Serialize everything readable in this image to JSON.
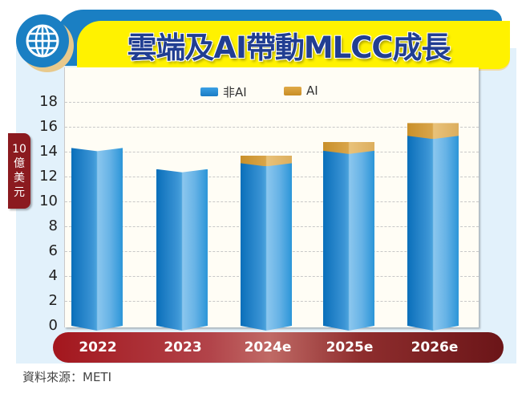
{
  "header": {
    "title": "雲端及AI帶動MLCC成長",
    "icon": "globe-icon"
  },
  "y_unit_label": [
    "10",
    "億",
    "美",
    "元"
  ],
  "legend": [
    {
      "label": "非AI",
      "color": "#1f8ad2"
    },
    {
      "label": "AI",
      "color": "#d39a34"
    }
  ],
  "y_ticks": [
    "18",
    "16",
    "14",
    "12",
    "10",
    "8",
    "6",
    "4",
    "2",
    "0"
  ],
  "x_labels": [
    "2022",
    "2023",
    "2024e",
    "2025e",
    "2026e"
  ],
  "source": "資料來源：METI",
  "chart_data": {
    "type": "bar",
    "stacked": true,
    "title": "雲端及AI帶動MLCC成長",
    "xlabel": "",
    "ylabel": "10億美元",
    "ylim": [
      0,
      18
    ],
    "yticks": [
      0,
      2,
      4,
      6,
      8,
      10,
      12,
      14,
      16,
      18
    ],
    "grid": true,
    "legend_position": "top",
    "categories": [
      "2022",
      "2023",
      "2024e",
      "2025e",
      "2026e"
    ],
    "series": [
      {
        "name": "非AI",
        "color": "#1f8ad2",
        "values": [
          14.3,
          12.6,
          13.2,
          14.2,
          15.4
        ]
      },
      {
        "name": "AI",
        "color": "#d39a34",
        "values": [
          0,
          0,
          0.5,
          0.6,
          0.9
        ]
      }
    ],
    "totals": [
      14.3,
      12.6,
      13.7,
      14.8,
      16.3
    ],
    "source": "資料來源：METI"
  }
}
